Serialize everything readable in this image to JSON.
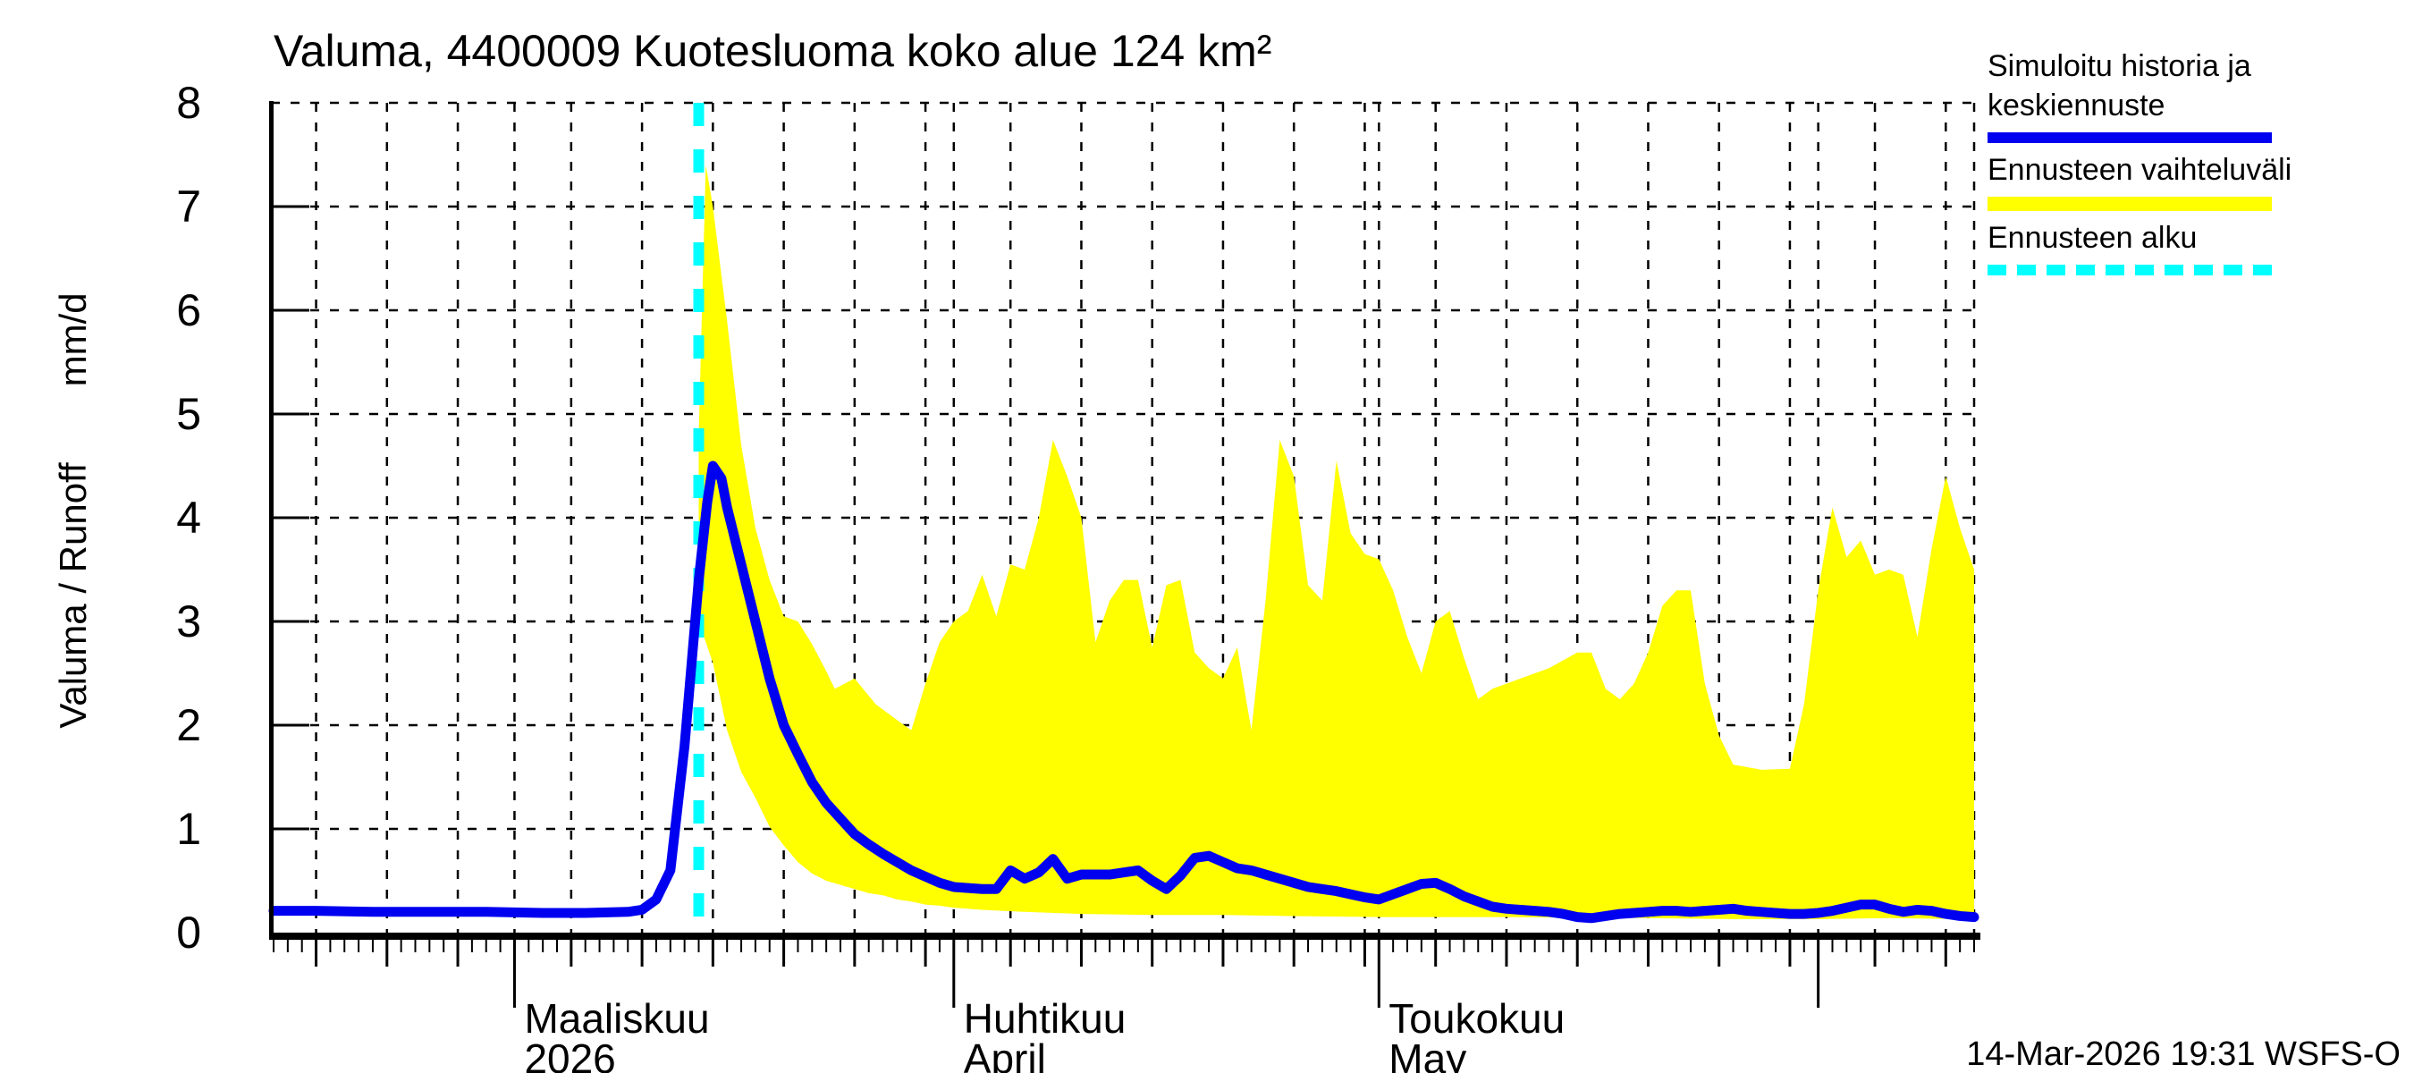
{
  "title": "Valuma, 4400009 Kuotesluoma koko alue 124 km²",
  "y_axis_label_main": "Valuma / Runoff",
  "y_axis_label_unit": "mm/d",
  "footer_timestamp": "14-Mar-2026 19:31 WSFS-O",
  "legend": {
    "items": [
      {
        "line1": "Simuloitu historia ja",
        "line2": "keskiennuste",
        "color": "#0000f0",
        "style": "solid"
      },
      {
        "line1": "Ennusteen vaihteluväli",
        "line2": "",
        "color": "#ffff00",
        "style": "solid"
      },
      {
        "line1": "Ennusteen alku",
        "line2": "",
        "color": "#00ffff",
        "style": "dashed"
      }
    ]
  },
  "chart_data": {
    "type": "area",
    "title": "Valuma, 4400009 Kuotesluoma koko alue 124 km²",
    "xlabel": "",
    "ylabel": "Valuma / Runoff  mm/d",
    "ylim": [
      0,
      8
    ],
    "y_ticks": [
      0,
      1,
      2,
      3,
      4,
      5,
      6,
      7,
      8
    ],
    "grid": true,
    "legend_position": "top-right",
    "x_axis_note": "day 0 = 1-Mar-2026; range 12-Feb-2026 to 12-Jun-2026",
    "x_range_days": [
      -17,
      103
    ],
    "forecast_start_day": 13,
    "forecast_start_label": "14-Mar-2026",
    "x_gridline_days": [
      -14,
      -9,
      -4,
      0,
      4,
      9,
      14,
      19,
      24,
      29,
      31,
      35,
      40,
      45,
      50,
      55,
      60,
      61,
      65,
      70,
      75,
      80,
      85,
      90,
      92,
      96,
      101,
      103
    ],
    "x_medium_tick_days": [
      -14,
      -9,
      -4,
      4,
      9,
      14,
      19,
      24,
      29,
      35,
      40,
      45,
      50,
      55,
      60,
      65,
      70,
      75,
      80,
      85,
      90,
      96,
      101
    ],
    "x_month_tick_days": [
      0,
      31,
      61,
      92
    ],
    "months": [
      {
        "label": "Maaliskuu",
        "sublabel": "2026",
        "day": 0
      },
      {
        "label": "Huhtikuu",
        "sublabel": "April",
        "day": 31
      },
      {
        "label": "Toukokuu",
        "sublabel": "May",
        "day": 61
      }
    ],
    "colors": {
      "history_mean": "#0000f0",
      "forecast_band": "#ffff00",
      "forecast_start": "#00ffff",
      "axis": "#000000"
    },
    "series": [
      {
        "name": "Simuloitu historia ja keskiennuste",
        "type": "line",
        "color": "#0000f0",
        "points": [
          [
            -17,
            0.21
          ],
          [
            -14,
            0.21
          ],
          [
            -10,
            0.2
          ],
          [
            -6,
            0.2
          ],
          [
            -2,
            0.2
          ],
          [
            2,
            0.19
          ],
          [
            5,
            0.19
          ],
          [
            8,
            0.2
          ],
          [
            9,
            0.22
          ],
          [
            10,
            0.32
          ],
          [
            11,
            0.6
          ],
          [
            12,
            1.8
          ],
          [
            13,
            3.4
          ],
          [
            13.6,
            4.15
          ],
          [
            14,
            4.5
          ],
          [
            14.6,
            4.38
          ],
          [
            15,
            4.1
          ],
          [
            16,
            3.55
          ],
          [
            17,
            3.0
          ],
          [
            18,
            2.45
          ],
          [
            19,
            2.0
          ],
          [
            20,
            1.72
          ],
          [
            21,
            1.45
          ],
          [
            22,
            1.25
          ],
          [
            23,
            1.1
          ],
          [
            24,
            0.95
          ],
          [
            25,
            0.85
          ],
          [
            26,
            0.76
          ],
          [
            27,
            0.68
          ],
          [
            28,
            0.6
          ],
          [
            29,
            0.54
          ],
          [
            30,
            0.48
          ],
          [
            31,
            0.44
          ],
          [
            32,
            0.43
          ],
          [
            33,
            0.42
          ],
          [
            34,
            0.42
          ],
          [
            35,
            0.6
          ],
          [
            36,
            0.52
          ],
          [
            37,
            0.58
          ],
          [
            38,
            0.71
          ],
          [
            39,
            0.52
          ],
          [
            40,
            0.56
          ],
          [
            41,
            0.56
          ],
          [
            42,
            0.56
          ],
          [
            43,
            0.58
          ],
          [
            44,
            0.6
          ],
          [
            45,
            0.5
          ],
          [
            46,
            0.42
          ],
          [
            47,
            0.55
          ],
          [
            48,
            0.72
          ],
          [
            49,
            0.74
          ],
          [
            50,
            0.68
          ],
          [
            51,
            0.62
          ],
          [
            52,
            0.6
          ],
          [
            53,
            0.56
          ],
          [
            54,
            0.52
          ],
          [
            55,
            0.48
          ],
          [
            56,
            0.44
          ],
          [
            57,
            0.42
          ],
          [
            58,
            0.4
          ],
          [
            59,
            0.37
          ],
          [
            60,
            0.34
          ],
          [
            61,
            0.32
          ],
          [
            62,
            0.37
          ],
          [
            63,
            0.42
          ],
          [
            64,
            0.47
          ],
          [
            65,
            0.48
          ],
          [
            66,
            0.42
          ],
          [
            67,
            0.35
          ],
          [
            68,
            0.3
          ],
          [
            69,
            0.25
          ],
          [
            70,
            0.23
          ],
          [
            71,
            0.22
          ],
          [
            72,
            0.21
          ],
          [
            73,
            0.2
          ],
          [
            74,
            0.18
          ],
          [
            75,
            0.15
          ],
          [
            76,
            0.14
          ],
          [
            77,
            0.16
          ],
          [
            78,
            0.18
          ],
          [
            79,
            0.19
          ],
          [
            80,
            0.2
          ],
          [
            81,
            0.21
          ],
          [
            82,
            0.21
          ],
          [
            83,
            0.2
          ],
          [
            84,
            0.21
          ],
          [
            85,
            0.22
          ],
          [
            86,
            0.23
          ],
          [
            87,
            0.21
          ],
          [
            88,
            0.2
          ],
          [
            89,
            0.19
          ],
          [
            90,
            0.18
          ],
          [
            91,
            0.18
          ],
          [
            92,
            0.19
          ],
          [
            93,
            0.21
          ],
          [
            94,
            0.24
          ],
          [
            95,
            0.27
          ],
          [
            96,
            0.27
          ],
          [
            97,
            0.23
          ],
          [
            98,
            0.2
          ],
          [
            99,
            0.22
          ],
          [
            100,
            0.21
          ],
          [
            101,
            0.18
          ],
          [
            102,
            0.16
          ],
          [
            103,
            0.15
          ]
        ]
      },
      {
        "name": "Ennusteen vaihteluväli",
        "type": "band",
        "color": "#ffff00",
        "upper": [
          [
            13,
            4.8
          ],
          [
            13.5,
            7.4
          ],
          [
            14,
            7.0
          ],
          [
            15,
            5.9
          ],
          [
            16,
            4.7
          ],
          [
            17,
            3.9
          ],
          [
            18,
            3.4
          ],
          [
            19,
            3.05
          ],
          [
            20,
            3.0
          ],
          [
            21,
            2.78
          ],
          [
            22,
            2.52
          ],
          [
            22.6,
            2.35
          ],
          [
            24,
            2.45
          ],
          [
            25.5,
            2.2
          ],
          [
            27,
            2.05
          ],
          [
            28,
            1.95
          ],
          [
            29,
            2.4
          ],
          [
            30,
            2.8
          ],
          [
            31,
            3.0
          ],
          [
            32,
            3.1
          ],
          [
            33,
            3.45
          ],
          [
            34,
            3.05
          ],
          [
            35,
            3.55
          ],
          [
            36,
            3.5
          ],
          [
            37,
            4.0
          ],
          [
            38,
            4.75
          ],
          [
            39,
            4.4
          ],
          [
            40,
            4.0
          ],
          [
            41,
            2.8
          ],
          [
            42,
            3.2
          ],
          [
            43,
            3.4
          ],
          [
            44,
            3.4
          ],
          [
            45,
            2.75
          ],
          [
            46,
            3.35
          ],
          [
            47,
            3.4
          ],
          [
            48,
            2.7
          ],
          [
            49,
            2.55
          ],
          [
            50,
            2.45
          ],
          [
            51,
            2.75
          ],
          [
            52,
            1.95
          ],
          [
            53,
            3.2
          ],
          [
            54,
            4.75
          ],
          [
            55,
            4.4
          ],
          [
            56,
            3.35
          ],
          [
            57,
            3.2
          ],
          [
            58,
            4.55
          ],
          [
            59,
            3.85
          ],
          [
            60,
            3.65
          ],
          [
            61,
            3.6
          ],
          [
            62,
            3.3
          ],
          [
            63,
            2.85
          ],
          [
            64,
            2.5
          ],
          [
            65,
            3.0
          ],
          [
            66,
            3.1
          ],
          [
            67,
            2.65
          ],
          [
            68,
            2.25
          ],
          [
            69,
            2.35
          ],
          [
            71,
            2.45
          ],
          [
            73,
            2.55
          ],
          [
            75,
            2.7
          ],
          [
            76,
            2.7
          ],
          [
            77,
            2.35
          ],
          [
            78,
            2.25
          ],
          [
            79,
            2.4
          ],
          [
            80,
            2.7
          ],
          [
            81,
            3.15
          ],
          [
            82,
            3.3
          ],
          [
            83,
            3.3
          ],
          [
            84,
            2.4
          ],
          [
            85,
            1.9
          ],
          [
            86,
            1.62
          ],
          [
            88,
            1.57
          ],
          [
            90,
            1.58
          ],
          [
            91,
            2.2
          ],
          [
            92,
            3.3
          ],
          [
            93,
            4.1
          ],
          [
            94,
            3.62
          ],
          [
            95,
            3.78
          ],
          [
            96,
            3.45
          ],
          [
            97,
            3.5
          ],
          [
            98,
            3.45
          ],
          [
            99,
            2.85
          ],
          [
            100,
            3.7
          ],
          [
            101,
            4.4
          ],
          [
            102,
            3.9
          ],
          [
            103,
            3.5
          ]
        ],
        "lower": [
          [
            13,
            3.0
          ],
          [
            14,
            2.6
          ],
          [
            15,
            1.95
          ],
          [
            16,
            1.55
          ],
          [
            17,
            1.3
          ],
          [
            18,
            1.02
          ],
          [
            19,
            0.84
          ],
          [
            20,
            0.68
          ],
          [
            21,
            0.57
          ],
          [
            22,
            0.5
          ],
          [
            23,
            0.46
          ],
          [
            24,
            0.42
          ],
          [
            25,
            0.38
          ],
          [
            26,
            0.36
          ],
          [
            27,
            0.32
          ],
          [
            28,
            0.3
          ],
          [
            29,
            0.27
          ],
          [
            30,
            0.26
          ],
          [
            31,
            0.24
          ],
          [
            33,
            0.22
          ],
          [
            36,
            0.2
          ],
          [
            40,
            0.18
          ],
          [
            45,
            0.17
          ],
          [
            50,
            0.17
          ],
          [
            55,
            0.16
          ],
          [
            61,
            0.15
          ],
          [
            70,
            0.15
          ],
          [
            80,
            0.14
          ],
          [
            86,
            0.13
          ],
          [
            92,
            0.13
          ],
          [
            97,
            0.14
          ],
          [
            103,
            0.13
          ]
        ]
      },
      {
        "name": "Ennusteen alku",
        "type": "vline",
        "color": "#00ffff",
        "day": 13
      }
    ]
  }
}
